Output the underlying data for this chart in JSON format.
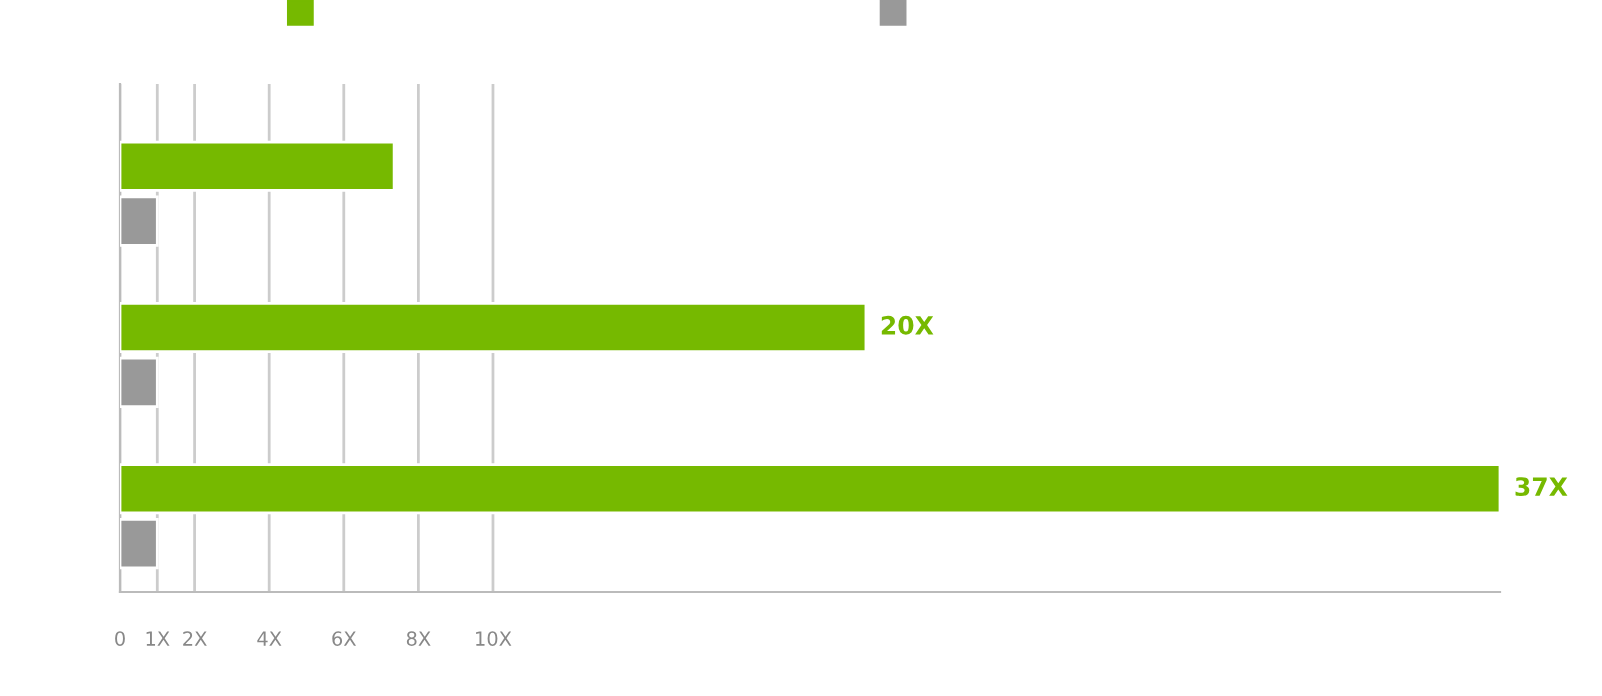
{
  "chart_data": {
    "type": "bar",
    "orientation": "horizontal",
    "categories": [
      null,
      null,
      null
    ],
    "series": [
      {
        "color": "#76b900",
        "values": [
          7.35,
          20,
          37
        ],
        "value_labels": [
          null,
          "20X",
          "37X"
        ]
      },
      {
        "color": "#999999",
        "values": [
          1,
          1,
          1
        ]
      }
    ],
    "xlim": [
      0,
      37
    ],
    "xticks": [
      0,
      {
        "value": 1,
        "label": "1X"
      },
      {
        "value": 2,
        "label": "2X"
      },
      {
        "value": 4,
        "label": "4X"
      },
      {
        "value": 6,
        "label": "6X"
      },
      {
        "value": 8,
        "label": "8X"
      },
      {
        "value": 10,
        "label": "10X"
      }
    ],
    "grid": "x"
  }
}
